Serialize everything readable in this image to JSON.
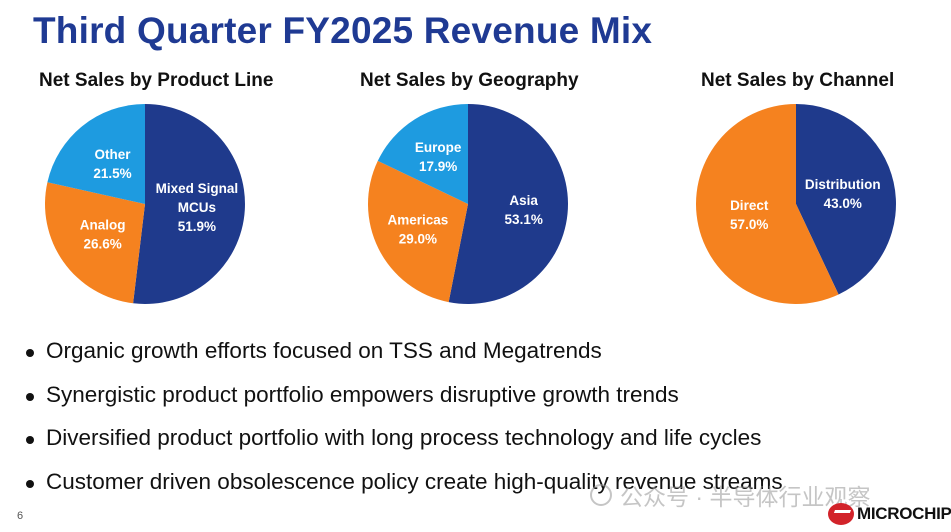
{
  "title": "Third Quarter FY2025 Revenue Mix",
  "chart_data": [
    {
      "type": "pie",
      "title": "Net Sales by Product Line",
      "slices": [
        {
          "label": [
            "Mixed Signal",
            "MCUs"
          ],
          "value": 51.9,
          "display": "51.9%",
          "color": "#1f3a8c"
        },
        {
          "label": [
            "Analog"
          ],
          "value": 26.6,
          "display": "26.6%",
          "color": "#f5821f"
        },
        {
          "label": [
            "Other"
          ],
          "value": 21.5,
          "display": "21.5%",
          "color": "#1e9be0"
        }
      ]
    },
    {
      "type": "pie",
      "title": "Net Sales by Geography",
      "slices": [
        {
          "label": [
            "Asia"
          ],
          "value": 53.1,
          "display": "53.1%",
          "color": "#1f3a8c"
        },
        {
          "label": [
            "Americas"
          ],
          "value": 29.0,
          "display": "29.0%",
          "color": "#f5821f"
        },
        {
          "label": [
            "Europe"
          ],
          "value": 17.9,
          "display": "17.9%",
          "color": "#1e9be0"
        }
      ]
    },
    {
      "type": "pie",
      "title": "Net Sales by Channel",
      "slices": [
        {
          "label": [
            "Distribution"
          ],
          "value": 43.0,
          "display": "43.0%",
          "color": "#1f3a8c"
        },
        {
          "label": [
            "Direct"
          ],
          "value": 57.0,
          "display": "57.0%",
          "color": "#f5821f"
        }
      ]
    }
  ],
  "bullets": [
    "Organic growth efforts focused on TSS and Megatrends",
    "Synergistic product portfolio empowers disruptive growth trends",
    "Diversified product portfolio with long process technology and life cycles",
    "Customer driven obsolescence policy create high-quality revenue streams"
  ],
  "page_number": "6",
  "watermark": "公众号 · 半导体行业观察",
  "logo_text": "MICROCHIP"
}
